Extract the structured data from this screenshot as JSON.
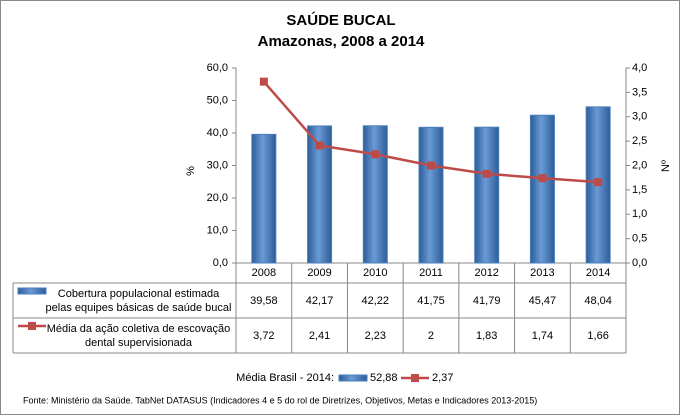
{
  "chart_data": {
    "type": "bar-line",
    "title": "SAÚDE BUCAL",
    "subtitle": "Amazonas, 2008 a 2014",
    "ylabel": "%",
    "y2label": "Nº",
    "categories": [
      "2008",
      "2009",
      "2010",
      "2011",
      "2012",
      "2013",
      "2014"
    ],
    "series": [
      {
        "name": "Cobertura populacional estimada pelas equipes básicas de saúde bucal",
        "type": "bar",
        "color": "#4a7ebb",
        "values": [
          39.58,
          42.17,
          42.22,
          41.75,
          41.79,
          45.47,
          48.04
        ],
        "value_labels": [
          "39,58",
          "42,17",
          "42,22",
          "41,75",
          "41,79",
          "45,47",
          "48,04"
        ]
      },
      {
        "name": "Média da ação coletiva de escovação dental supervisionada",
        "type": "line",
        "axis": "y2",
        "color": "#be4b48",
        "values": [
          3.72,
          2.41,
          2.23,
          2,
          1.83,
          1.74,
          1.66
        ],
        "value_labels": [
          "3,72",
          "2,41",
          "2,23",
          "2",
          "1,83",
          "1,74",
          "1,66"
        ]
      }
    ],
    "ylim": [
      0,
      60
    ],
    "yticks": [
      {
        "value": 0,
        "label": "0,0"
      },
      {
        "value": 10,
        "label": "10,0"
      },
      {
        "value": 20,
        "label": "20,0"
      },
      {
        "value": 30,
        "label": "30,0"
      },
      {
        "value": 40,
        "label": "40,0"
      },
      {
        "value": 50,
        "label": "50,0"
      },
      {
        "value": 60,
        "label": "60,0"
      }
    ],
    "y2lim": [
      0,
      4
    ],
    "y2ticks": [
      {
        "value": 0,
        "label": "0,0"
      },
      {
        "value": 0.5,
        "label": "0,5"
      },
      {
        "value": 1,
        "label": "1,0"
      },
      {
        "value": 1.5,
        "label": "1,5"
      },
      {
        "value": 2,
        "label": "2,0"
      },
      {
        "value": 2.5,
        "label": "2,5"
      },
      {
        "value": 3,
        "label": "3,0"
      },
      {
        "value": 3.5,
        "label": "3,5"
      },
      {
        "value": 4,
        "label": "4,0"
      }
    ],
    "grid": false,
    "reference": {
      "label": "Média Brasil - 2014:",
      "values": [
        52.88,
        2.37
      ],
      "value_labels": [
        "52,88",
        "2,37"
      ]
    },
    "source": "Fonte: Ministério da Saúde. TabNet DATASUS (Indicadores 4 e 5 do rol de Diretrizes, Objetivos, Metas e Indicadores 2013-2015)"
  }
}
